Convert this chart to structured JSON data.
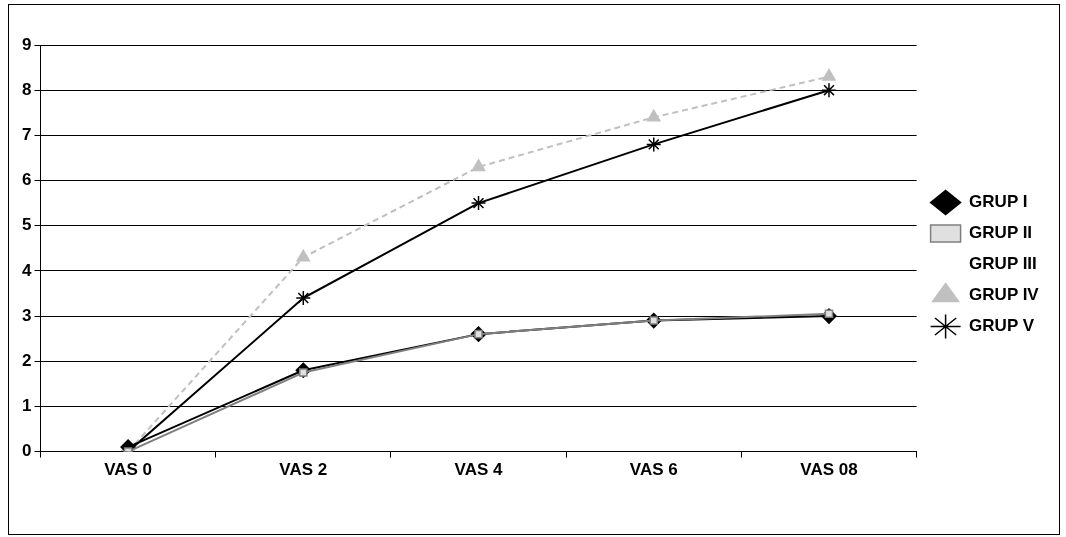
{
  "chart_data": {
    "type": "line",
    "categories": [
      "VAS 0",
      "VAS 2",
      "VAS 4",
      "VAS 6",
      "VAS 08"
    ],
    "series": [
      {
        "name": "GRUP I",
        "color": "#000000",
        "marker": "diamond",
        "values": [
          0.1,
          1.8,
          2.6,
          2.9,
          3.0
        ]
      },
      {
        "name": "GRUP II",
        "color": "#808080",
        "marker": "square",
        "values": [
          0,
          1.75,
          2.6,
          2.9,
          3.05
        ]
      },
      {
        "name": "GRUP III",
        "marker": "none",
        "values": [
          null,
          null,
          null,
          null,
          null
        ]
      },
      {
        "name": "GRUP IV",
        "color": "#c0c0c0",
        "marker": "triangle",
        "line_style": "dashed",
        "values": [
          0,
          4.3,
          6.3,
          7.4,
          8.3
        ]
      },
      {
        "name": "GRUP V",
        "color": "#000000",
        "marker": "cross",
        "values": [
          0,
          3.4,
          5.5,
          6.8,
          8.0
        ]
      }
    ],
    "ylim": [
      0,
      9
    ],
    "yticks": [
      0,
      1,
      2,
      3,
      4,
      5,
      6,
      7,
      8,
      9
    ],
    "grid": "y",
    "legend": "right"
  }
}
